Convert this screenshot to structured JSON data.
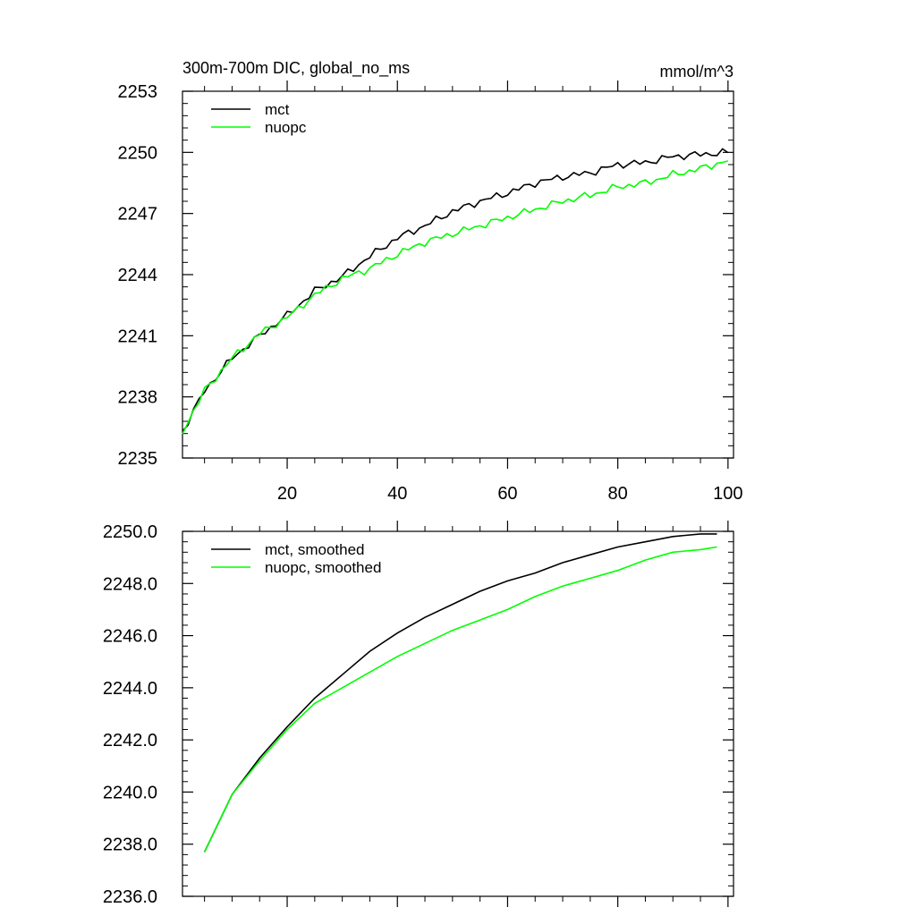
{
  "chart_data": [
    {
      "type": "line",
      "title": "300m-700m DIC, global_no_ms",
      "units": "mmol/m^3",
      "xlim": [
        1,
        101
      ],
      "ylim": [
        2235,
        2253
      ],
      "xticks": [
        20,
        40,
        60,
        80,
        100
      ],
      "yticks": [
        2235,
        2238,
        2241,
        2244,
        2247,
        2250,
        2253
      ],
      "ytick_labels": [
        "2235",
        "2238",
        "2241",
        "2244",
        "2247",
        "2250",
        "2253"
      ],
      "xtick_labels": [
        "20",
        "40",
        "60",
        "80",
        "100"
      ],
      "legend_position": "top-left",
      "series": [
        {
          "name": "mct",
          "color": "#000000",
          "x": [
            1,
            5,
            10,
            15,
            20,
            25,
            30,
            35,
            40,
            45,
            50,
            55,
            60,
            65,
            70,
            75,
            80,
            85,
            90,
            95,
            100
          ],
          "values": [
            2236.3,
            2238.3,
            2239.9,
            2241.0,
            2242.0,
            2243.2,
            2243.9,
            2244.9,
            2245.8,
            2246.4,
            2247.1,
            2247.6,
            2248.0,
            2248.5,
            2248.8,
            2249.0,
            2249.4,
            2249.5,
            2249.8,
            2249.9,
            2250.0
          ]
        },
        {
          "name": "nuopc",
          "color": "#00ff00",
          "x": [
            1,
            5,
            10,
            15,
            20,
            25,
            30,
            35,
            40,
            45,
            50,
            55,
            60,
            65,
            70,
            75,
            80,
            85,
            90,
            95,
            100
          ],
          "values": [
            2236.3,
            2238.3,
            2239.9,
            2241.1,
            2241.9,
            2243.0,
            2243.8,
            2244.3,
            2245.0,
            2245.6,
            2246.0,
            2246.4,
            2246.8,
            2247.2,
            2247.6,
            2247.9,
            2248.3,
            2248.5,
            2248.9,
            2249.2,
            2249.6
          ]
        }
      ]
    },
    {
      "type": "line",
      "xlim": [
        1,
        101
      ],
      "ylim": [
        2236,
        2250
      ],
      "xticks": [
        20,
        40,
        60,
        80,
        100
      ],
      "yticks": [
        2236,
        2238,
        2240,
        2242,
        2244,
        2246,
        2248,
        2250
      ],
      "ytick_labels": [
        "2236.0",
        "2238.0",
        "2240.0",
        "2242.0",
        "2244.0",
        "2246.0",
        "2248.0",
        "2250.0"
      ],
      "legend_position": "top-left",
      "series": [
        {
          "name": "mct, smoothed",
          "color": "#000000",
          "x": [
            5,
            10,
            15,
            20,
            25,
            30,
            35,
            40,
            45,
            50,
            55,
            60,
            65,
            70,
            75,
            80,
            85,
            90,
            95,
            98
          ],
          "values": [
            2237.7,
            2239.9,
            2241.3,
            2242.5,
            2243.6,
            2244.5,
            2245.4,
            2246.1,
            2246.7,
            2247.2,
            2247.7,
            2248.1,
            2248.4,
            2248.8,
            2249.1,
            2249.4,
            2249.6,
            2249.8,
            2249.9,
            2249.9
          ]
        },
        {
          "name": "nuopc, smoothed",
          "color": "#00ff00",
          "x": [
            5,
            10,
            15,
            20,
            25,
            30,
            35,
            40,
            45,
            50,
            55,
            60,
            65,
            70,
            75,
            80,
            85,
            90,
            95,
            98
          ],
          "values": [
            2237.7,
            2239.9,
            2241.2,
            2242.4,
            2243.4,
            2244.0,
            2244.6,
            2245.2,
            2245.7,
            2246.2,
            2246.6,
            2247.0,
            2247.5,
            2247.9,
            2248.2,
            2248.5,
            2248.9,
            2249.2,
            2249.3,
            2249.4
          ]
        }
      ]
    }
  ]
}
